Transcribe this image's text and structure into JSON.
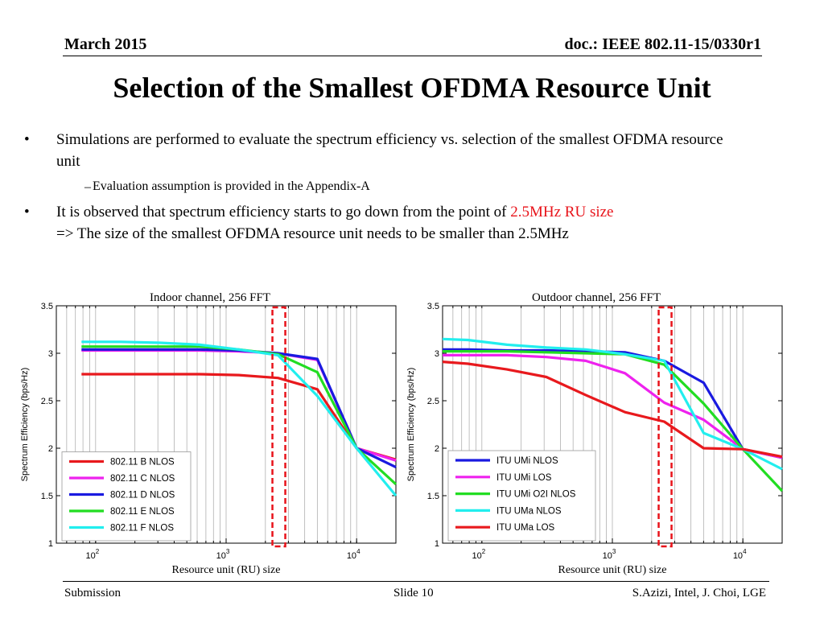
{
  "header": {
    "date": "March 2015",
    "doc": "doc.: IEEE 802.11-15/0330r1"
  },
  "title": "Selection of the Smallest OFDMA Resource Unit",
  "bullets": {
    "b1": "Simulations are performed to evaluate the spectrum efficiency  vs. selection of  the smallest OFDMA resource unit",
    "b1_sub": "Evaluation assumption is provided in the Appendix-A",
    "b2_pre": "It is observed that spectrum efficiency starts to go down from the point of ",
    "b2_red": "2.5MHz RU size",
    "b2_line2": "=> The size of the smallest OFDMA resource unit needs to be smaller than 2.5MHz",
    "bullet_char": "•",
    "dash_char": "–",
    "highlight_color": "#e8131a"
  },
  "chart_data": [
    {
      "type": "line",
      "title": "Indoor channel, 256 FFT",
      "xlabel": "Resource unit (RU) size",
      "ylabel": "Spectrum Efficiency (bps/Hz)",
      "xscale": "log",
      "xlim": [
        50,
        20000
      ],
      "ylim": [
        1,
        3.5
      ],
      "yticks": [
        "1",
        "1.5",
        "2",
        "2.5",
        "3",
        "3.5"
      ],
      "xticks": [
        {
          "base": "10",
          "exp": "2"
        },
        {
          "base": "10",
          "exp": "3"
        },
        {
          "base": "10",
          "exp": "4"
        }
      ],
      "grid": "x-minor",
      "legend_position": "bottom-left",
      "highlight_x": 2500,
      "x": [
        78,
        156,
        312,
        625,
        1250,
        2500,
        5000,
        10000,
        20000
      ],
      "series": [
        {
          "name": "802.11 B NLOS",
          "color": "#e8191d",
          "values": [
            2.78,
            2.78,
            2.78,
            2.78,
            2.77,
            2.74,
            2.62,
            2.0,
            1.88
          ]
        },
        {
          "name": "802.11 C NLOS",
          "color": "#ee22ee",
          "values": [
            3.03,
            3.03,
            3.03,
            3.03,
            3.02,
            3.0,
            2.93,
            2.0,
            1.87
          ]
        },
        {
          "name": "802.11 D NLOS",
          "color": "#1a1ae0",
          "values": [
            3.04,
            3.04,
            3.04,
            3.04,
            3.03,
            3.0,
            2.94,
            2.0,
            1.8
          ]
        },
        {
          "name": "802.11 E NLOS",
          "color": "#22dd22",
          "values": [
            3.07,
            3.07,
            3.07,
            3.07,
            3.04,
            2.99,
            2.8,
            2.0,
            1.62
          ]
        },
        {
          "name": "802.11 F NLOS",
          "color": "#22eeee",
          "values": [
            3.12,
            3.12,
            3.11,
            3.09,
            3.04,
            2.98,
            2.55,
            2.0,
            1.5
          ]
        }
      ]
    },
    {
      "type": "line",
      "title": "Outdoor channel, 256 FFT",
      "xlabel": "Resource unit (RU) size",
      "ylabel": "Spectrum Efficiency (bps/Hz)",
      "xscale": "log",
      "xlim": [
        50,
        20000
      ],
      "ylim": [
        1,
        3.5
      ],
      "yticks": [
        "1",
        "1.5",
        "2",
        "2.5",
        "3",
        "3.5"
      ],
      "xticks": [
        {
          "base": "10",
          "exp": "2"
        },
        {
          "base": "10",
          "exp": "3"
        },
        {
          "base": "10",
          "exp": "4"
        }
      ],
      "grid": "x-minor",
      "legend_position": "bottom-left",
      "highlight_x": 2500,
      "x": [
        50,
        78,
        156,
        312,
        625,
        1250,
        2500,
        5000,
        10000,
        20000
      ],
      "series": [
        {
          "name": "ITU UMi NLOS",
          "color": "#1a1ae0",
          "values": [
            3.04,
            3.04,
            3.03,
            3.03,
            3.02,
            3.01,
            2.92,
            2.69,
            1.99,
            1.9
          ]
        },
        {
          "name": "ITU UMi LOS",
          "color": "#ee22ee",
          "values": [
            2.98,
            2.98,
            2.98,
            2.96,
            2.92,
            2.79,
            2.48,
            2.3,
            1.99,
            1.9
          ]
        },
        {
          "name": "ITU UMi O2I NLOS",
          "color": "#22dd22",
          "values": [
            3.02,
            3.02,
            3.02,
            3.01,
            3.0,
            2.99,
            2.88,
            2.47,
            1.99,
            1.55
          ]
        },
        {
          "name": "ITU UMa NLOS",
          "color": "#22eeee",
          "values": [
            3.15,
            3.14,
            3.09,
            3.06,
            3.04,
            2.99,
            2.92,
            2.16,
            1.99,
            1.78
          ]
        },
        {
          "name": "ITU UMa LOS",
          "color": "#e8191d",
          "values": [
            2.91,
            2.89,
            2.83,
            2.75,
            2.56,
            2.38,
            2.28,
            2.0,
            1.99,
            1.91
          ]
        }
      ]
    }
  ],
  "footer": {
    "left": "Submission",
    "middle": "Slide 10",
    "right": "S.Azizi, Intel, J. Choi, LGE"
  }
}
